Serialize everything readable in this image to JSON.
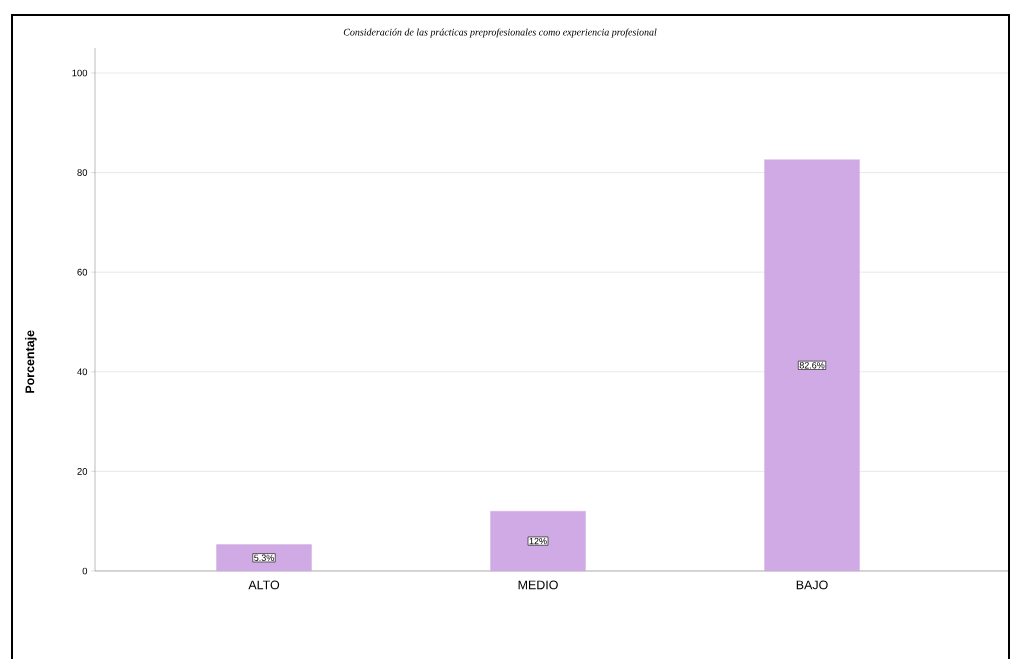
{
  "chart_data": {
    "type": "bar",
    "title": "Consideración de las prácticas preprofesionales como experiencia profesional",
    "ylabel": "Porcentaje",
    "categories": [
      "ALTO",
      "MEDIO",
      "BAJO"
    ],
    "values": [
      5.3,
      12,
      82.6
    ],
    "value_labels": [
      "5.3%",
      "12%",
      "82.6%"
    ],
    "color": "#cfaae4",
    "ylim": [
      0,
      105
    ],
    "yticks": [
      0,
      20,
      40,
      60,
      80,
      100
    ],
    "grid": "y"
  }
}
